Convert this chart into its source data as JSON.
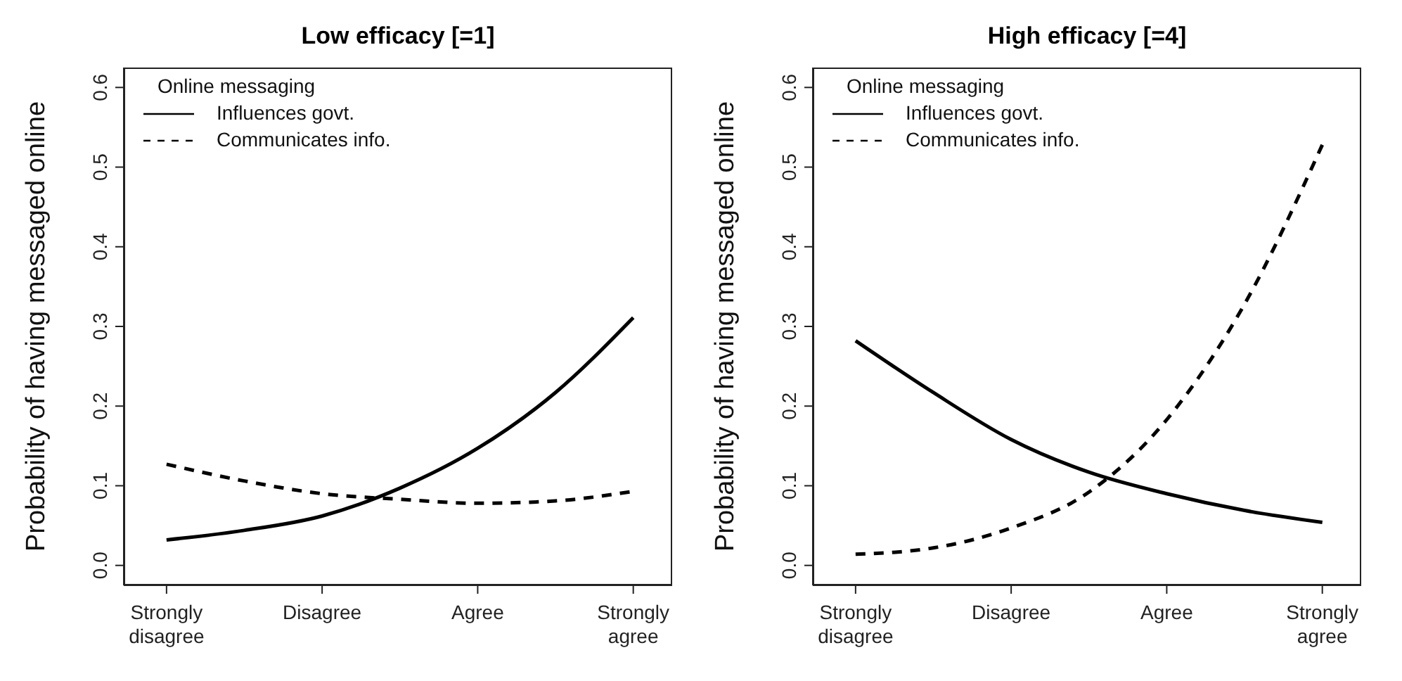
{
  "chart_data": [
    {
      "type": "line",
      "title": "Low efficacy [=1]",
      "ylabel": "Probability of having messaged online",
      "legend_title": "Online messaging",
      "legend": "top left",
      "grid": false,
      "marker": "none",
      "categories": [
        "Strongly disagree",
        null,
        "Disagree",
        null,
        "Agree",
        null,
        "Strongly agree"
      ],
      "ylim": [
        -0.025,
        0.625
      ],
      "yticks": [
        {
          "value": 0,
          "label": "0.0"
        },
        0.1,
        0.2,
        0.3,
        0.4,
        0.5,
        0.6
      ],
      "series": [
        {
          "name": "Influences govt.",
          "color": "#000000",
          "line_style": "solid",
          "values": [
            0.032,
            0.044,
            0.062,
            0.097,
            0.147,
            0.217,
            0.311
          ]
        },
        {
          "name": "Communicates info.",
          "color": "#000000",
          "line_style": "dashed",
          "values": [
            0.127,
            0.106,
            0.09,
            0.083,
            0.078,
            0.081,
            0.093
          ]
        }
      ]
    },
    {
      "type": "line",
      "title": "High efficacy [=4]",
      "ylabel": "Probability of having messaged online",
      "legend_title": "Online messaging",
      "legend": "top left",
      "grid": false,
      "marker": "none",
      "categories": [
        "Strongly disagree",
        null,
        "Disagree",
        null,
        "Agree",
        null,
        "Strongly agree"
      ],
      "ylim": [
        -0.025,
        0.625
      ],
      "yticks": [
        {
          "value": 0,
          "label": "0.0"
        },
        0.1,
        0.2,
        0.3,
        0.4,
        0.5,
        0.6
      ],
      "series": [
        {
          "name": "Influences govt.",
          "color": "#000000",
          "line_style": "solid",
          "values": [
            0.282,
            0.217,
            0.158,
            0.117,
            0.09,
            0.069,
            0.054
          ]
        },
        {
          "name": "Communicates info.",
          "color": "#000000",
          "line_style": "dashed",
          "values": [
            0.014,
            0.022,
            0.047,
            0.092,
            0.183,
            0.328,
            0.528
          ]
        }
      ]
    }
  ]
}
